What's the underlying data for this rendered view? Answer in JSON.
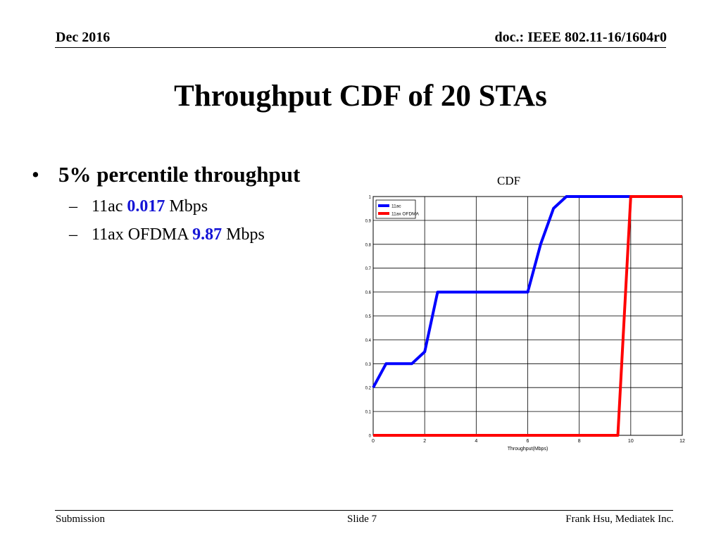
{
  "header": {
    "date": "Dec 2016",
    "doc_id": "doc.: IEEE 802.11-16/1604r0"
  },
  "slide_title": "Throughput CDF of 20 STAs",
  "bullets": {
    "main": {
      "symbol": "•",
      "text": "5% percentile throughput"
    },
    "items": [
      {
        "dash": "–",
        "prefix": "11ac",
        "value": "0.017",
        "unit": "Mbps"
      },
      {
        "dash": "–",
        "prefix": "11ax OFDMA",
        "value": "9.87",
        "unit": "Mbps"
      }
    ]
  },
  "chart_data": {
    "type": "line",
    "title": "CDF",
    "xlabel": "Throughput(Mbps)",
    "ylabel": "",
    "xlim": [
      0,
      12
    ],
    "ylim": [
      0,
      1
    ],
    "xticks": [
      0,
      2,
      4,
      6,
      8,
      10,
      12
    ],
    "yticks": [
      0,
      0.1,
      0.2,
      0.3,
      0.4,
      0.5,
      0.6,
      0.7,
      0.8,
      0.9,
      1
    ],
    "grid": true,
    "legend_position": "top-left",
    "series": [
      {
        "name": "11ac",
        "color": "#0000ff",
        "x": [
          0,
          0.5,
          1.5,
          2.0,
          2.5,
          6.0,
          6.5,
          7.0,
          7.5,
          12
        ],
        "y": [
          0.2,
          0.3,
          0.3,
          0.35,
          0.6,
          0.6,
          0.8,
          0.95,
          1.0,
          1.0
        ]
      },
      {
        "name": "11ax OFDMA",
        "color": "#ff0000",
        "x": [
          0,
          9.5,
          10.0,
          12
        ],
        "y": [
          0,
          0,
          1.0,
          1.0
        ]
      }
    ]
  },
  "footer": {
    "left": "Submission",
    "center": "Slide 7",
    "right": "Frank Hsu, Mediatek Inc."
  }
}
